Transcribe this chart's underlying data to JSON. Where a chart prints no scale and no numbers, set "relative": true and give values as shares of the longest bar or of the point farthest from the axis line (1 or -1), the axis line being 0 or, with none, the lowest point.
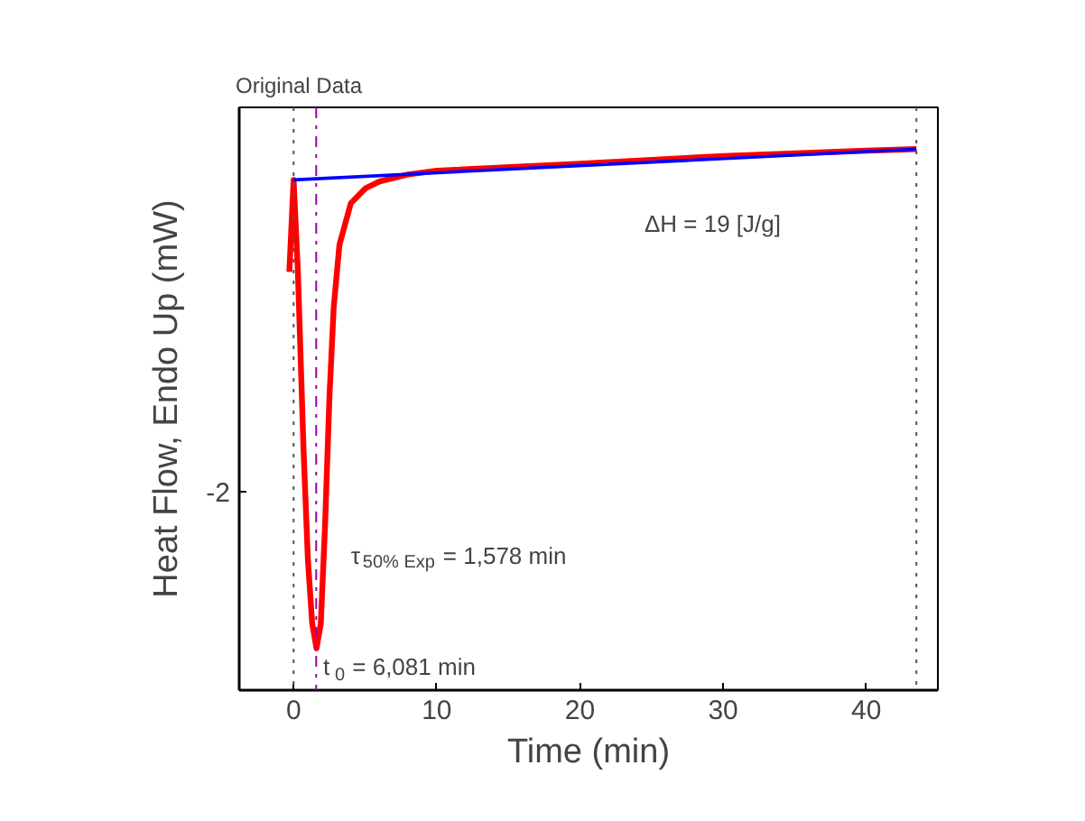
{
  "chart_data": {
    "type": "line",
    "title": "Original Data",
    "xlabel": "Time (min)",
    "ylabel": "Heat Flow, Endo Up (mW)",
    "relative": true,
    "xlim": [
      -3.8,
      45
    ],
    "xticks": [
      0,
      10,
      20,
      30,
      40
    ],
    "series": [
      {
        "color": "#ff0000",
        "x": [
          -0.3,
          0,
          0.3,
          0.7,
          1.0,
          1.3,
          1.6,
          1.9,
          2.2,
          2.5,
          2.8,
          3.2,
          4,
          5,
          6,
          8,
          10,
          20,
          30,
          40,
          43.5
        ],
        "values": [
          0.773,
          0.943,
          0.773,
          0.44,
          0.24,
          0.123,
          0.077,
          0.123,
          0.307,
          0.54,
          0.707,
          0.823,
          0.9,
          0.927,
          0.94,
          0.953,
          0.96,
          0.973,
          0.987,
          0.997,
          1
        ]
      },
      {
        "color": "#0000ff",
        "x": [
          0,
          43.5
        ],
        "values": [
          0.943,
          1
        ]
      }
    ],
    "ref_lines": [
      {
        "axis": "x",
        "value": 0,
        "color": "#555555",
        "line_style": "dotted"
      },
      {
        "axis": "x",
        "value": 43.5,
        "color": "#555555",
        "line_style": "dotted"
      },
      {
        "axis": "x",
        "value": 1.578,
        "color": "#9900aa",
        "line_style": "dashdot"
      }
    ],
    "annotations": [
      "-2",
      "ΔH = 19 [J/g]",
      "τ$_{50% Exp}$ = 1,578 min",
      "t$_{0}$ = 6,081 min"
    ],
    "grid": false
  }
}
